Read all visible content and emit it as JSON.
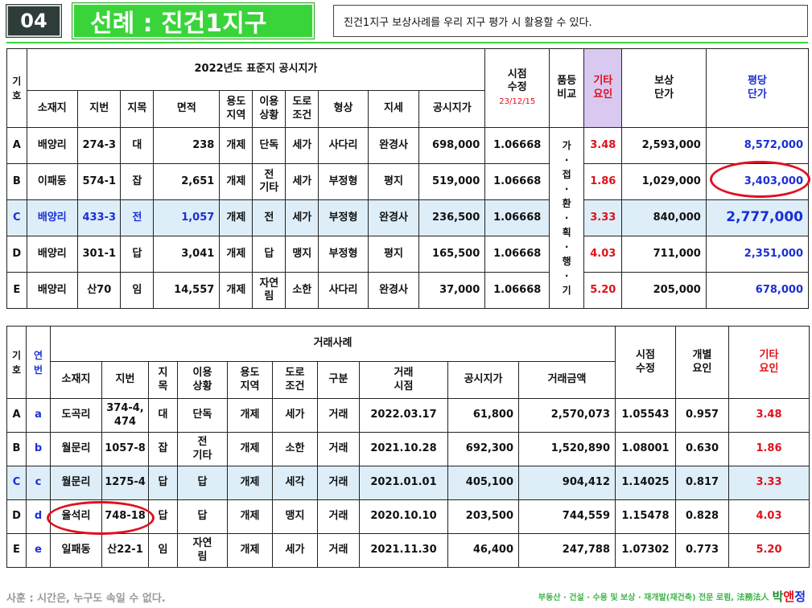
{
  "header": {
    "number": "04",
    "title": "선례 : 진건1지구",
    "subtitle": "진건1지구 보상사례를 우리 지구 평가 시 활용할 수 있다."
  },
  "table1": {
    "title": "2022년도 표준지 공시지가",
    "col_code": "기\n호",
    "cols": [
      "소재지",
      "지번",
      "지목",
      "면적",
      "용도\n지역",
      "이용\n상황",
      "도로\n조건",
      "형상",
      "지세",
      "공시지가"
    ],
    "time_adj": "시점\n수정",
    "time_adj_date": "23/12/15",
    "grade_compare": "품등\n비교",
    "other_factor": "기타\n요인",
    "comp_unit": "보상\n단가",
    "per_pyeong": "평당\n단가",
    "grade_vertical": "가\n·\n접\n·\n환\n·\n획\n·\n행\n·\n기",
    "rows": [
      {
        "code": "A",
        "loc": "배양리",
        "lot": "274-3",
        "cat": "대",
        "area": "238",
        "zone": "개제",
        "use": "단독",
        "road": "세가",
        "shape": "사다리",
        "terrain": "완경사",
        "price": "698,000",
        "time": "1.06668",
        "other": "3.48",
        "comp": "2,593,000",
        "pyeong": "8,572,000"
      },
      {
        "code": "B",
        "loc": "이패동",
        "lot": "574-1",
        "cat": "잡",
        "area": "2,651",
        "zone": "개제",
        "use": "전\n기타",
        "road": "세가",
        "shape": "부정형",
        "terrain": "평지",
        "price": "519,000",
        "time": "1.06668",
        "other": "1.86",
        "comp": "1,029,000",
        "pyeong": "3,403,000"
      },
      {
        "code": "C",
        "loc": "배양리",
        "lot": "433-3",
        "cat": "전",
        "area": "1,057",
        "zone": "개제",
        "use": "전",
        "road": "세가",
        "shape": "부정형",
        "terrain": "완경사",
        "price": "236,500",
        "time": "1.06668",
        "other": "3.33",
        "comp": "840,000",
        "pyeong": "2,777,000"
      },
      {
        "code": "D",
        "loc": "배양리",
        "lot": "301-1",
        "cat": "답",
        "area": "3,041",
        "zone": "개제",
        "use": "답",
        "road": "맹지",
        "shape": "부정형",
        "terrain": "평지",
        "price": "165,500",
        "time": "1.06668",
        "other": "4.03",
        "comp": "711,000",
        "pyeong": "2,351,000"
      },
      {
        "code": "E",
        "loc": "배양리",
        "lot": "산70",
        "cat": "임",
        "area": "14,557",
        "zone": "개제",
        "use": "자연\n림",
        "road": "소한",
        "shape": "사다리",
        "terrain": "완경사",
        "price": "37,000",
        "time": "1.06668",
        "other": "5.20",
        "comp": "205,000",
        "pyeong": "678,000"
      }
    ]
  },
  "table2": {
    "title": "거래사례",
    "col_code": "기\n호",
    "col_serial": "연\n번",
    "cols": [
      "소재지",
      "지번",
      "지\n목",
      "이용\n상황",
      "용도\n지역",
      "도로\n조건",
      "구분",
      "거래\n시점",
      "공시지가",
      "거래금액"
    ],
    "time_adj": "시점\n수정",
    "indiv_factor": "개별\n요인",
    "other_factor": "기타\n요인",
    "rows": [
      {
        "code": "A",
        "serial": "a",
        "loc": "도곡리",
        "lot": "374-4,\n474",
        "cat": "대",
        "use": "단독",
        "zone": "개제",
        "road": "세가",
        "kind": "거래",
        "date": "2022.03.17",
        "price": "61,800",
        "amount": "2,570,073",
        "time": "1.05543",
        "indiv": "0.957",
        "other": "3.48"
      },
      {
        "code": "B",
        "serial": "b",
        "loc": "월문리",
        "lot": "1057-8",
        "cat": "잡",
        "use": "전\n기타",
        "zone": "개제",
        "road": "소한",
        "kind": "거래",
        "date": "2021.10.28",
        "price": "692,300",
        "amount": "1,520,890",
        "time": "1.08001",
        "indiv": "0.630",
        "other": "1.86"
      },
      {
        "code": "C",
        "serial": "c",
        "loc": "월문리",
        "lot": "1275-4",
        "cat": "답",
        "use": "답",
        "zone": "개제",
        "road": "세각",
        "kind": "거래",
        "date": "2021.01.01",
        "price": "405,100",
        "amount": "904,412",
        "time": "1.14025",
        "indiv": "0.817",
        "other": "3.33"
      },
      {
        "code": "D",
        "serial": "d",
        "loc": "율석리",
        "lot": "748-18",
        "cat": "답",
        "use": "답",
        "zone": "개제",
        "road": "맹지",
        "kind": "거래",
        "date": "2020.10.10",
        "price": "203,500",
        "amount": "744,559",
        "time": "1.15478",
        "indiv": "0.828",
        "other": "4.03"
      },
      {
        "code": "E",
        "serial": "e",
        "loc": "일패동",
        "lot": "산22-1",
        "cat": "임",
        "use": "자연\n림",
        "zone": "개제",
        "road": "세가",
        "kind": "거래",
        "date": "2021.11.30",
        "price": "46,400",
        "amount": "247,788",
        "time": "1.07302",
        "indiv": "0.773",
        "other": "5.20"
      }
    ]
  },
  "footer": {
    "left": "사훈 : 시간은, 누구도 속일 수 없다.",
    "right": "부동산 · 건설 · 수용 및 보상 · 재개발(재건축) 전문 로펌, 法務法人",
    "brand_1": "박",
    "brand_2": "앤",
    "brand_3": "정"
  },
  "colors": {
    "accent_green": "#39d43a",
    "red": "#e0101a",
    "blue": "#1a2fd6",
    "highlight_row": "#ddeef8",
    "lavender": "#d9c9f0"
  }
}
